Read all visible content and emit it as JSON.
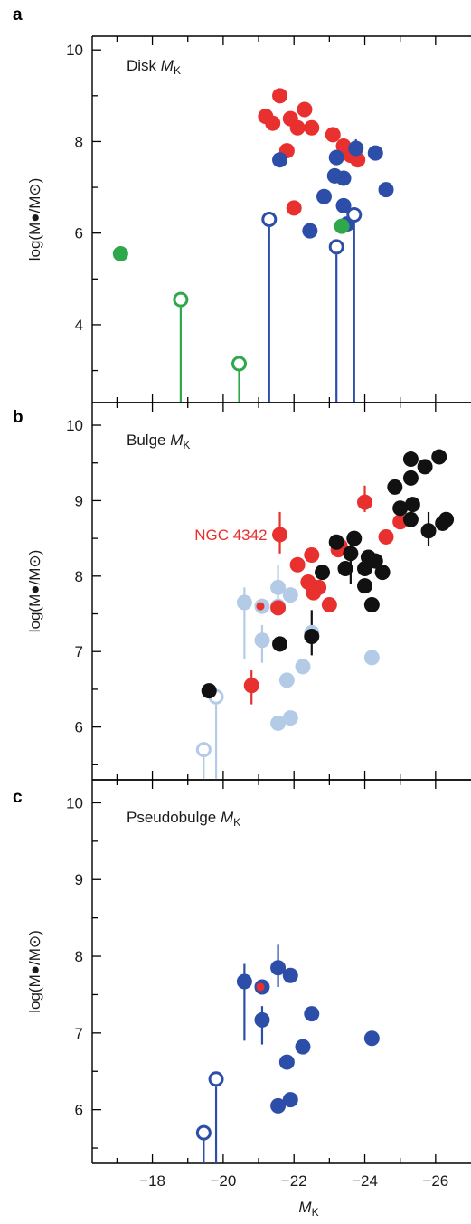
{
  "colors": {
    "red": "#e8302e",
    "blue": "#2c4ea8",
    "light_blue": "#b3cbe6",
    "green": "#2ea84a",
    "black": "#111111"
  },
  "chart_data": [
    {
      "type": "scatter",
      "panel_letter": "a",
      "panel_title": "Disk",
      "panel_title_var": "M",
      "panel_title_sub": "K",
      "ylabel": "log(M●/M⊙)",
      "ylim": [
        2.3,
        10.3
      ],
      "xlim": [
        -16.3,
        -27
      ],
      "yticks": [
        "4",
        "6",
        "8",
        "10"
      ],
      "yticks_labeled": [
        4,
        6,
        8,
        10
      ],
      "series": [
        {
          "color": "red",
          "marker": "filled",
          "points": [
            [
              -21.6,
              9.0
            ],
            [
              -21.2,
              8.55
            ],
            [
              -21.4,
              8.4
            ],
            [
              -21.9,
              8.5
            ],
            [
              -22.3,
              8.7
            ],
            [
              -22.1,
              8.3
            ],
            [
              -22.5,
              8.3
            ],
            [
              -21.8,
              7.8
            ],
            [
              -23.1,
              8.15
            ],
            [
              -23.4,
              7.9
            ],
            [
              -23.6,
              7.7
            ],
            [
              -23.8,
              7.6
            ],
            [
              -22.0,
              6.55
            ]
          ]
        },
        {
          "color": "blue",
          "marker": "filled",
          "points": [
            [
              -21.6,
              7.6
            ],
            [
              -23.2,
              7.65
            ],
            [
              -23.75,
              7.85
            ],
            [
              -24.3,
              7.75
            ],
            [
              -23.15,
              7.25
            ],
            [
              -23.4,
              7.2
            ],
            [
              -22.85,
              6.8
            ],
            [
              -23.4,
              6.6
            ],
            [
              -24.6,
              6.95
            ],
            [
              -22.45,
              6.05
            ],
            [
              -23.5,
              6.2
            ]
          ],
          "errors": [
            [
              -23.75,
              8.05,
              7.65
            ]
          ]
        },
        {
          "color": "blue",
          "marker": "open",
          "points": [
            [
              -21.3,
              6.3
            ],
            [
              -23.2,
              5.7
            ],
            [
              -23.7,
              6.4
            ]
          ],
          "upper_limit_stem": true
        },
        {
          "color": "green",
          "marker": "filled",
          "points": [
            [
              -17.1,
              5.55
            ],
            [
              -23.35,
              6.15
            ]
          ]
        },
        {
          "color": "green",
          "marker": "open",
          "points": [
            [
              -18.8,
              4.55
            ],
            [
              -20.45,
              3.15
            ]
          ],
          "upper_limit_stem": true
        }
      ]
    },
    {
      "type": "scatter",
      "panel_letter": "b",
      "panel_title": "Bulge",
      "panel_title_var": "M",
      "panel_title_sub": "K",
      "ylabel": "log(M●/M⊙)",
      "ylim": [
        5.3,
        10.3
      ],
      "xlim": [
        -16.3,
        -27
      ],
      "yticks": [
        "6",
        "7",
        "8",
        "9",
        "10"
      ],
      "yticks_labeled": [
        6,
        7,
        8,
        9,
        10
      ],
      "annotation": {
        "text": "NGC 4342",
        "color": "red",
        "at": [
          -21.6,
          8.55
        ]
      },
      "series": [
        {
          "color": "light_blue",
          "marker": "filled",
          "points": [
            [
              -20.6,
              7.65
            ],
            [
              -21.1,
              7.15
            ],
            [
              -21.1,
              7.6
            ],
            [
              -21.55,
              7.85
            ],
            [
              -21.9,
              7.75
            ],
            [
              -21.55,
              7.6
            ],
            [
              -22.25,
              6.8
            ],
            [
              -22.5,
              7.25
            ],
            [
              -21.8,
              6.62
            ],
            [
              -21.55,
              6.05
            ],
            [
              -21.9,
              6.12
            ],
            [
              -24.2,
              6.92
            ]
          ],
          "errors": [
            [
              -20.6,
              7.85,
              6.9
            ],
            [
              -21.1,
              7.35,
              6.85
            ],
            [
              -21.55,
              8.15,
              7.5
            ]
          ]
        },
        {
          "color": "light_blue",
          "marker": "open",
          "points": [
            [
              -19.45,
              5.7
            ],
            [
              -19.8,
              6.4
            ]
          ],
          "upper_limit_stem": true
        },
        {
          "color": "red",
          "marker": "filled",
          "points": [
            [
              -21.6,
              8.55
            ],
            [
              -24.0,
              8.98
            ],
            [
              -25.0,
              8.72
            ],
            [
              -24.6,
              8.52
            ],
            [
              -22.1,
              8.15
            ],
            [
              -22.5,
              8.28
            ],
            [
              -22.4,
              7.92
            ],
            [
              -22.7,
              7.85
            ],
            [
              -22.55,
              7.78
            ],
            [
              -23.25,
              8.35
            ],
            [
              -23.3,
              8.4
            ],
            [
              -21.55,
              7.58
            ],
            [
              -23.0,
              7.62
            ],
            [
              -20.8,
              6.55
            ]
          ],
          "errors": [
            [
              -21.6,
              8.85,
              8.3
            ],
            [
              -24.0,
              9.2,
              8.85
            ],
            [
              -20.8,
              6.75,
              6.3
            ]
          ]
        },
        {
          "color": "red",
          "marker": "small",
          "points": [
            [
              -21.05,
              7.6
            ]
          ]
        },
        {
          "color": "black",
          "marker": "filled",
          "points": [
            [
              -25.3,
              9.55
            ],
            [
              -26.1,
              9.58
            ],
            [
              -25.7,
              9.45
            ],
            [
              -25.3,
              9.3
            ],
            [
              -24.85,
              9.18
            ],
            [
              -25.0,
              8.9
            ],
            [
              -25.35,
              8.95
            ],
            [
              -25.3,
              8.75
            ],
            [
              -25.8,
              8.6
            ],
            [
              -26.3,
              8.75
            ],
            [
              -26.2,
              8.7
            ],
            [
              -23.2,
              8.45
            ],
            [
              -23.7,
              8.5
            ],
            [
              -23.6,
              8.3
            ],
            [
              -24.1,
              8.25
            ],
            [
              -24.3,
              8.2
            ],
            [
              -24.0,
              8.1
            ],
            [
              -24.5,
              8.05
            ],
            [
              -23.45,
              8.1
            ],
            [
              -22.8,
              8.05
            ],
            [
              -24.0,
              7.87
            ],
            [
              -24.2,
              7.62
            ],
            [
              -22.5,
              7.2
            ],
            [
              -21.6,
              7.1
            ],
            [
              -19.6,
              6.48
            ]
          ],
          "errors": [
            [
              -25.8,
              8.85,
              8.4
            ],
            [
              -22.5,
              7.55,
              6.95
            ],
            [
              -23.6,
              8.5,
              7.9
            ]
          ]
        }
      ]
    },
    {
      "type": "scatter",
      "panel_letter": "c",
      "panel_title": "Pseudobulge",
      "panel_title_var": "M",
      "panel_title_sub": "K",
      "ylabel": "log(M●/M⊙)",
      "xlabel": "M",
      "xlabel_sub": "K",
      "ylim": [
        5.3,
        10.3
      ],
      "xlim": [
        -16.3,
        -27
      ],
      "yticks": [
        "6",
        "7",
        "8",
        "9",
        "10"
      ],
      "yticks_labeled": [
        6,
        7,
        8,
        9,
        10
      ],
      "xticks": [
        "−18",
        "−20",
        "−22",
        "−24",
        "−26"
      ],
      "xticks_labeled": [
        -18,
        -20,
        -22,
        -24,
        -26
      ],
      "series": [
        {
          "color": "blue",
          "marker": "filled",
          "points": [
            [
              -20.6,
              7.67
            ],
            [
              -21.1,
              7.6
            ],
            [
              -21.55,
              7.85
            ],
            [
              -21.9,
              7.75
            ],
            [
              -21.1,
              7.17
            ],
            [
              -22.5,
              7.25
            ],
            [
              -22.25,
              6.82
            ],
            [
              -21.8,
              6.62
            ],
            [
              -21.55,
              6.05
            ],
            [
              -21.9,
              6.13
            ],
            [
              -24.2,
              6.93
            ]
          ],
          "errors": [
            [
              -20.6,
              7.9,
              6.9
            ],
            [
              -21.55,
              8.15,
              7.6
            ],
            [
              -21.1,
              7.35,
              6.85
            ]
          ]
        },
        {
          "color": "blue",
          "marker": "open",
          "points": [
            [
              -19.45,
              5.7
            ],
            [
              -19.8,
              6.4
            ]
          ],
          "upper_limit_stem": true
        },
        {
          "color": "red",
          "marker": "small",
          "points": [
            [
              -21.05,
              7.6
            ]
          ]
        }
      ]
    }
  ]
}
